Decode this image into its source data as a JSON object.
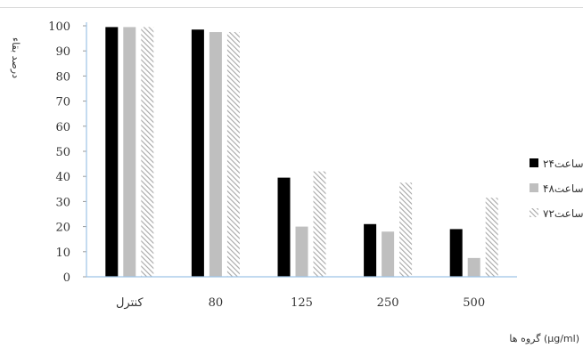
{
  "chart_data": {
    "type": "bar",
    "title": "",
    "ylabel": "درصد بقاء",
    "xlabel": "گروه ها (μg/ml)",
    "ylim": [
      0,
      100
    ],
    "yticks": [
      0,
      10,
      20,
      30,
      40,
      50,
      60,
      70,
      80,
      90,
      100
    ],
    "categories": [
      "کنترل",
      "80",
      "125",
      "250",
      "500"
    ],
    "series": [
      {
        "name": "۲۴ساعت",
        "color": "#000000",
        "pattern": "solid",
        "values": [
          99.5,
          98.5,
          39.5,
          21,
          19
        ]
      },
      {
        "name": "۴۸ساعت",
        "color": "#bfbfbf",
        "pattern": "solid",
        "values": [
          99.5,
          97.5,
          20,
          18,
          7.5
        ]
      },
      {
        "name": "۷۲ساعت",
        "color": "#a6a6a6",
        "pattern": "diagonal-hatch",
        "values": [
          99.5,
          97.5,
          42,
          37.5,
          31.5
        ]
      }
    ],
    "legend_position": "right",
    "grid": false
  }
}
